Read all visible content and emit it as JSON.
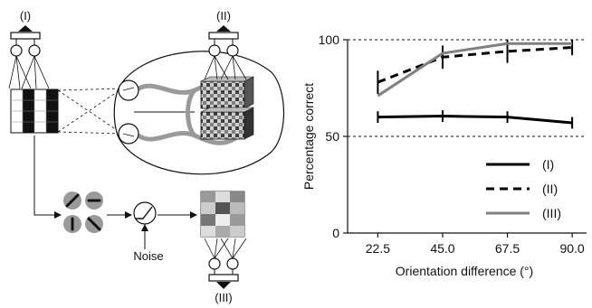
{
  "diagram": {
    "label_I": "(I)",
    "label_II": "(II)",
    "label_III": "(III)",
    "noise_label": "Noise"
  },
  "chart_data": {
    "type": "line",
    "xlabel": "Orientation difference (°)",
    "ylabel": "Percentage correct",
    "categories": [
      "22.5",
      "45.0",
      "67.5",
      "90.0"
    ],
    "x": [
      22.5,
      45.0,
      67.5,
      90.0
    ],
    "xlim": [
      12,
      95
    ],
    "ylim": [
      0,
      100
    ],
    "yticks": [
      0,
      50,
      100
    ],
    "dashed_reference_lines": [
      50,
      100
    ],
    "legend_position": "bottom-right",
    "grid": false,
    "series": [
      {
        "name": "(I)",
        "values": [
          60,
          60.5,
          60,
          57
        ],
        "errors": [
          3,
          3,
          3,
          3
        ],
        "style": "solid",
        "color": "#000000"
      },
      {
        "name": "(II)",
        "values": [
          78,
          91,
          94,
          96
        ],
        "errors": [
          6,
          6,
          6,
          4
        ],
        "style": "dashed",
        "color": "#000000"
      },
      {
        "name": "(III)",
        "values": [
          71,
          93,
          98,
          98
        ],
        "errors": [
          0,
          0,
          0,
          0
        ],
        "style": "solid",
        "color": "#808080"
      }
    ]
  }
}
